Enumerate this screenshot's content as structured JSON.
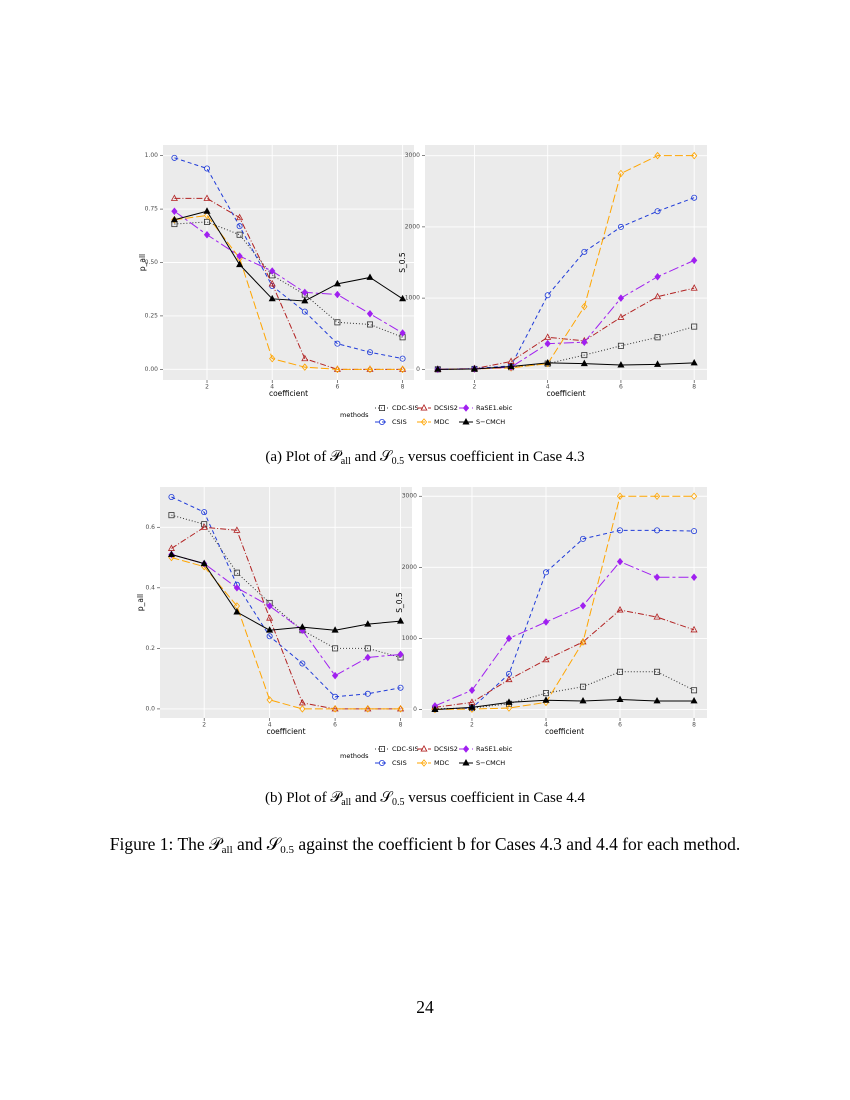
{
  "chart_data": [
    {
      "type": "line",
      "y_label": "p_all",
      "x_label": "coefficient",
      "legend_title": "methods",
      "grid": true,
      "x": [
        1,
        2,
        3,
        4,
        5,
        6,
        7,
        8
      ],
      "xlim": [
        0.65,
        8.35
      ],
      "xticks": [
        2,
        4,
        6,
        8
      ],
      "ylim": [
        -0.05,
        1.05
      ],
      "yticks": [
        {
          "value": 0,
          "label": "0.00"
        },
        {
          "value": 0.25,
          "label": "0.25"
        },
        {
          "value": 0.5,
          "label": "0.50"
        },
        {
          "value": 0.75,
          "label": "0.75"
        },
        {
          "value": 1,
          "label": "1.00"
        }
      ],
      "series": [
        {
          "name": "CDC-SIS",
          "color": "#333333",
          "dash": "1,2",
          "marker": "square-open",
          "values": [
            0.68,
            0.69,
            0.63,
            0.44,
            0.35,
            0.22,
            0.21,
            0.15
          ]
        },
        {
          "name": "CSIS",
          "color": "#1f3bd9",
          "dash": "4,3",
          "marker": "circle-open",
          "values": [
            0.99,
            0.94,
            0.67,
            0.39,
            0.27,
            0.12,
            0.08,
            0.05
          ]
        },
        {
          "name": "DCSIS2",
          "color": "#b22222",
          "dash": "6,2,1,2",
          "marker": "triangle-open",
          "values": [
            0.8,
            0.8,
            0.71,
            0.4,
            0.05,
            0.0,
            0.0,
            0.0
          ]
        },
        {
          "name": "MDC",
          "color": "#ffa500",
          "dash": "8,3",
          "marker": "diamond-open",
          "values": [
            0.7,
            0.72,
            0.52,
            0.05,
            0.01,
            0.0,
            0.0,
            0.0
          ]
        },
        {
          "name": "RaSE1.ebic",
          "color": "#a020f0",
          "dash": "10,3,3,3",
          "marker": "diamond-filled",
          "values": [
            0.74,
            0.63,
            0.53,
            0.46,
            0.36,
            0.35,
            0.26,
            0.17
          ]
        },
        {
          "name": "S−CMCH",
          "color": "#000000",
          "dash": "solid",
          "marker": "triangle-filled",
          "values": [
            0.7,
            0.74,
            0.49,
            0.33,
            0.32,
            0.4,
            0.43,
            0.33
          ]
        }
      ]
    },
    {
      "type": "line",
      "y_label": "S_0.5",
      "x_label": "coefficient",
      "grid": true,
      "x": [
        1,
        2,
        3,
        4,
        5,
        6,
        7,
        8
      ],
      "xlim": [
        0.65,
        8.35
      ],
      "xticks": [
        2,
        4,
        6,
        8
      ],
      "ylim": [
        -150,
        3150
      ],
      "yticks": [
        0,
        1000,
        2000,
        3000
      ],
      "series": [
        {
          "color": "#333333",
          "dash": "1,2",
          "marker": "square-open",
          "values": [
            0,
            5,
            30,
            80,
            200,
            330,
            450,
            600
          ]
        },
        {
          "color": "#1f3bd9",
          "dash": "4,3",
          "marker": "circle-open",
          "values": [
            0,
            10,
            50,
            1040,
            1650,
            2000,
            2220,
            2410
          ]
        },
        {
          "color": "#b22222",
          "dash": "6,2,1,2",
          "marker": "triangle-open",
          "values": [
            0,
            10,
            110,
            450,
            400,
            730,
            1020,
            1140
          ]
        },
        {
          "color": "#ffa500",
          "dash": "8,3",
          "marker": "diamond-open",
          "values": [
            0,
            5,
            20,
            80,
            880,
            2750,
            3000,
            3000
          ]
        },
        {
          "color": "#a020f0",
          "dash": "10,3,3,3",
          "marker": "diamond-filled",
          "values": [
            0,
            5,
            30,
            360,
            380,
            1000,
            1300,
            1530
          ]
        },
        {
          "color": "#000000",
          "dash": "solid",
          "marker": "triangle-filled",
          "values": [
            0,
            5,
            40,
            90,
            80,
            60,
            70,
            90
          ]
        }
      ]
    },
    {
      "type": "line",
      "y_label": "p_all",
      "x_label": "coefficient",
      "legend_title": "methods",
      "grid": true,
      "x": [
        1,
        2,
        3,
        4,
        5,
        6,
        7,
        8
      ],
      "xlim": [
        0.65,
        8.35
      ],
      "xticks": [
        2,
        4,
        6,
        8
      ],
      "ylim": [
        -0.03,
        0.733
      ],
      "yticks": [
        {
          "value": 0,
          "label": "0.0"
        },
        {
          "value": 0.2,
          "label": "0.2"
        },
        {
          "value": 0.4,
          "label": "0.4"
        },
        {
          "value": 0.6,
          "label": "0.6"
        }
      ],
      "series": [
        {
          "name": "CDC-SIS",
          "color": "#333333",
          "dash": "1,2",
          "marker": "square-open",
          "values": [
            0.64,
            0.61,
            0.45,
            0.35,
            0.26,
            0.2,
            0.2,
            0.17
          ]
        },
        {
          "name": "CSIS",
          "color": "#1f3bd9",
          "dash": "4,3",
          "marker": "circle-open",
          "values": [
            0.7,
            0.65,
            0.41,
            0.24,
            0.15,
            0.04,
            0.05,
            0.07
          ]
        },
        {
          "name": "DCSIS2",
          "color": "#b22222",
          "dash": "6,2,1,2",
          "marker": "triangle-open",
          "values": [
            0.53,
            0.6,
            0.59,
            0.3,
            0.02,
            0.0,
            0.0,
            0.0
          ]
        },
        {
          "name": "MDC",
          "color": "#ffa500",
          "dash": "8,3",
          "marker": "diamond-open",
          "values": [
            0.5,
            0.47,
            0.34,
            0.03,
            0.0,
            0.0,
            0.0,
            0.0
          ]
        },
        {
          "name": "RaSE1.ebic",
          "color": "#a020f0",
          "dash": "10,3,3,3",
          "marker": "diamond-filled",
          "values": [
            0.51,
            0.48,
            0.4,
            0.34,
            0.26,
            0.11,
            0.17,
            0.18
          ]
        },
        {
          "name": "S−CMCH",
          "color": "#000000",
          "dash": "solid",
          "marker": "triangle-filled",
          "values": [
            0.51,
            0.48,
            0.32,
            0.26,
            0.27,
            0.26,
            0.28,
            0.29
          ]
        }
      ]
    },
    {
      "type": "line",
      "y_label": "S_0.5",
      "x_label": "coefficient",
      "grid": true,
      "x": [
        1,
        2,
        3,
        4,
        5,
        6,
        7,
        8
      ],
      "xlim": [
        0.65,
        8.35
      ],
      "xticks": [
        2,
        4,
        6,
        8
      ],
      "ylim": [
        -120,
        3130
      ],
      "yticks": [
        0,
        1000,
        2000,
        3000
      ],
      "series": [
        {
          "color": "#333333",
          "dash": "1,2",
          "marker": "square-open",
          "values": [
            10,
            20,
            80,
            230,
            320,
            530,
            530,
            270
          ]
        },
        {
          "color": "#1f3bd9",
          "dash": "4,3",
          "marker": "circle-open",
          "values": [
            0,
            20,
            500,
            1930,
            2400,
            2520,
            2520,
            2510
          ]
        },
        {
          "color": "#b22222",
          "dash": "6,2,1,2",
          "marker": "triangle-open",
          "values": [
            30,
            100,
            420,
            700,
            950,
            1400,
            1300,
            1120
          ]
        },
        {
          "color": "#ffa500",
          "dash": "8,3",
          "marker": "diamond-open",
          "values": [
            0,
            5,
            20,
            100,
            950,
            3000,
            3000,
            3000
          ]
        },
        {
          "color": "#a020f0",
          "dash": "10,3,3,3",
          "marker": "diamond-filled",
          "values": [
            50,
            270,
            1000,
            1230,
            1460,
            2080,
            1860,
            1860
          ]
        },
        {
          "color": "#000000",
          "dash": "solid",
          "marker": "triangle-filled",
          "values": [
            0,
            30,
            100,
            130,
            120,
            140,
            120,
            120
          ]
        }
      ]
    }
  ],
  "captions": [
    {
      "prefix": "(a) Plot of ",
      "p": "𝒫",
      "p_sub": "all",
      "and": " and ",
      "s": "𝒮",
      "s_sub": "0.5",
      "suffix": " versus coefficient in Case 4.3"
    },
    {
      "prefix": "(b) Plot of ",
      "p": "𝒫",
      "p_sub": "all",
      "and": " and ",
      "s": "𝒮",
      "s_sub": "0.5",
      "suffix": " versus coefficient in Case 4.4"
    }
  ],
  "figure_caption": {
    "prefix": "Figure 1: The ",
    "p": "𝒫",
    "p_sub": "all",
    "and": " and ",
    "s": "𝒮",
    "s_sub": "0.5",
    "suffix": " against the coefficient b for Cases 4.3 and 4.4 for each method."
  },
  "page_number": "24"
}
